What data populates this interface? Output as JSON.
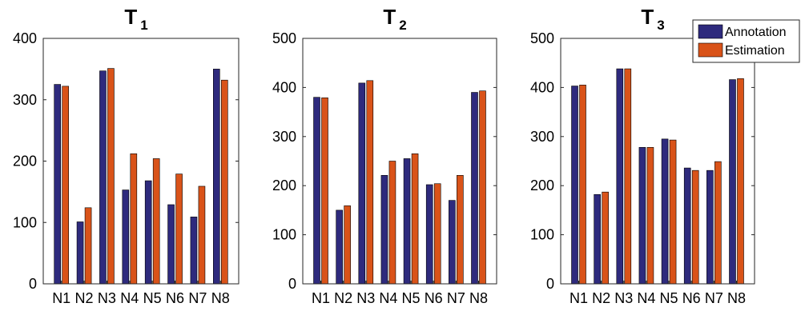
{
  "chart_data": [
    {
      "type": "bar",
      "title": "T",
      "title_subscript": "1",
      "categories": [
        "N1",
        "N2",
        "N3",
        "N4",
        "N5",
        "N6",
        "N7",
        "N8"
      ],
      "ylim": [
        0,
        400
      ],
      "yticks": [
        0,
        100,
        200,
        300,
        400
      ],
      "grid": false,
      "series": [
        {
          "name": "Annotation",
          "color": "#2e2a7d",
          "values": [
            325,
            101,
            347,
            153,
            168,
            129,
            109,
            350
          ]
        },
        {
          "name": "Estimation",
          "color": "#d95319",
          "values": [
            322,
            124,
            351,
            212,
            204,
            179,
            159,
            332
          ]
        }
      ]
    },
    {
      "type": "bar",
      "title": "T",
      "title_subscript": "2",
      "categories": [
        "N1",
        "N2",
        "N3",
        "N4",
        "N5",
        "N6",
        "N7",
        "N8"
      ],
      "ylim": [
        0,
        500
      ],
      "yticks": [
        0,
        100,
        200,
        300,
        400,
        500
      ],
      "grid": false,
      "series": [
        {
          "name": "Annotation",
          "color": "#2e2a7d",
          "values": [
            380,
            150,
            409,
            221,
            255,
            202,
            170,
            390
          ]
        },
        {
          "name": "Estimation",
          "color": "#d95319",
          "values": [
            379,
            159,
            414,
            250,
            265,
            204,
            221,
            393
          ]
        }
      ]
    },
    {
      "type": "bar",
      "title": "T",
      "title_subscript": "3",
      "categories": [
        "N1",
        "N2",
        "N3",
        "N4",
        "N5",
        "N6",
        "N7",
        "N8"
      ],
      "ylim": [
        0,
        500
      ],
      "yticks": [
        0,
        100,
        200,
        300,
        400,
        500
      ],
      "grid": false,
      "legend": "top-right",
      "series": [
        {
          "name": "Annotation",
          "color": "#2e2a7d",
          "values": [
            403,
            182,
            438,
            278,
            295,
            236,
            231,
            416
          ]
        },
        {
          "name": "Estimation",
          "color": "#d95319",
          "values": [
            405,
            187,
            438,
            278,
            293,
            231,
            249,
            418
          ]
        }
      ]
    }
  ]
}
